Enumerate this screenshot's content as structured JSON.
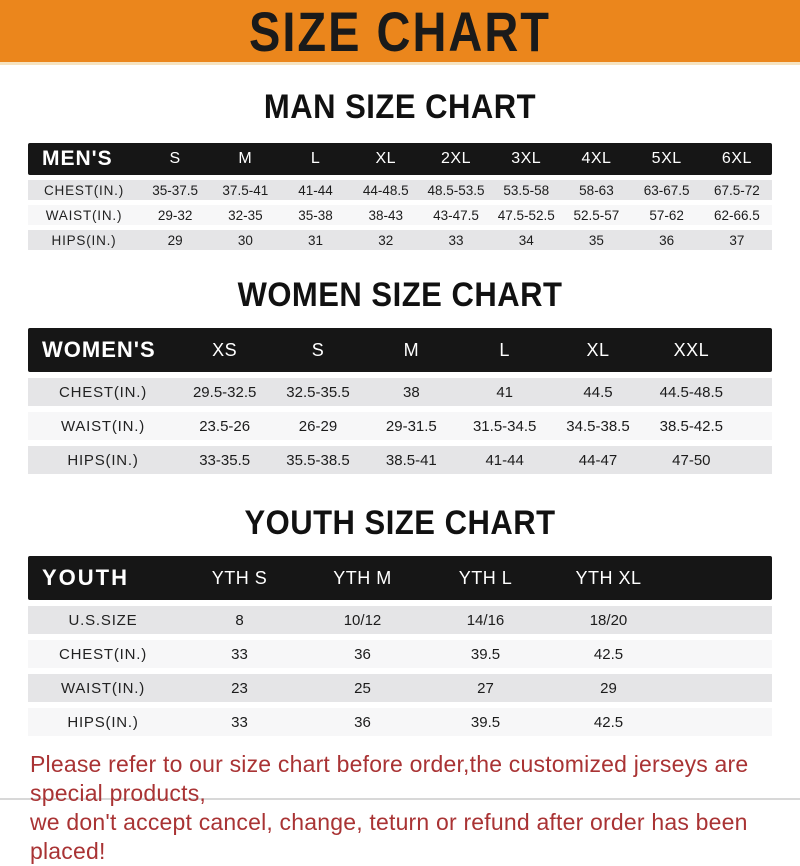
{
  "banner": {
    "title": "SIZE CHART",
    "bg_color": "#EB861C",
    "text_color": "#1a1a1a"
  },
  "sections": [
    {
      "title": "MAN SIZE CHART",
      "header": {
        "label": "MEN'S",
        "sizes": [
          "S",
          "M",
          "L",
          "XL",
          "2XL",
          "3XL",
          "4XL",
          "5XL",
          "6XL"
        ]
      },
      "rows": [
        {
          "label": "CHEST(IN.)",
          "values": [
            "35-37.5",
            "37.5-41",
            "41-44",
            "44-48.5",
            "48.5-53.5",
            "53.5-58",
            "58-63",
            "63-67.5",
            "67.5-72"
          ]
        },
        {
          "label": "WAIST(IN.)",
          "values": [
            "29-32",
            "32-35",
            "35-38",
            "38-43",
            "43-47.5",
            "47.5-52.5",
            "52.5-57",
            "57-62",
            "62-66.5"
          ]
        },
        {
          "label": "HIPS(IN.)",
          "values": [
            "29",
            "30",
            "31",
            "32",
            "33",
            "34",
            "35",
            "36",
            "37"
          ]
        }
      ]
    },
    {
      "title": "WOMEN SIZE CHART",
      "header": {
        "label": "WOMEN'S",
        "sizes": [
          "XS",
          "S",
          "M",
          "L",
          "XL",
          "XXL"
        ]
      },
      "rows": [
        {
          "label": "CHEST(IN.)",
          "values": [
            "29.5-32.5",
            "32.5-35.5",
            "38",
            "41",
            "44.5",
            "44.5-48.5"
          ]
        },
        {
          "label": "WAIST(IN.)",
          "values": [
            "23.5-26",
            "26-29",
            "29-31.5",
            "31.5-34.5",
            "34.5-38.5",
            "38.5-42.5"
          ]
        },
        {
          "label": "HIPS(IN.)",
          "values": [
            "33-35.5",
            "35.5-38.5",
            "38.5-41",
            "41-44",
            "44-47",
            "47-50"
          ]
        }
      ]
    },
    {
      "title": "YOUTH SIZE CHART",
      "header": {
        "label": "YOUTH",
        "sizes": [
          "YTH S",
          "YTH M",
          "YTH L",
          "YTH XL"
        ]
      },
      "rows": [
        {
          "label": "U.S.SIZE",
          "values": [
            "8",
            "10/12",
            "14/16",
            "18/20"
          ]
        },
        {
          "label": "CHEST(IN.)",
          "values": [
            "33",
            "36",
            "39.5",
            "42.5"
          ]
        },
        {
          "label": "WAIST(IN.)",
          "values": [
            "23",
            "25",
            "27",
            "29"
          ]
        },
        {
          "label": "HIPS(IN.)",
          "values": [
            "33",
            "36",
            "39.5",
            "42.5"
          ]
        }
      ]
    }
  ],
  "footer": {
    "line1": "Please refer to our size chart before order,the customized jerseys are special products,",
    "line2": "we don't accept cancel, change, teturn or refund after order has been placed!",
    "text_color": "#A93334"
  }
}
